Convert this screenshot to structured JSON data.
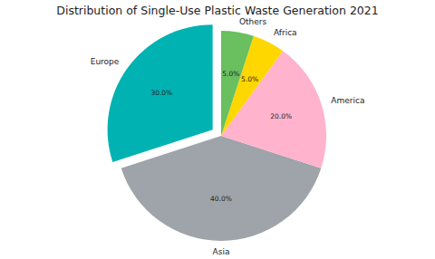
{
  "chart_data": {
    "type": "pie",
    "title": "Distribution of Single-Use Plastic Waste Generation 2021",
    "categories": [
      "Europe",
      "Asia",
      "America",
      "Africa",
      "Others"
    ],
    "values": [
      30,
      40,
      20,
      5,
      5
    ],
    "value_labels": [
      "30.0%",
      "40.0%",
      "20.0%",
      "5.0%",
      "5.0%"
    ],
    "colors": [
      "#00b2b2",
      "#9ea4a9",
      "#ffb3cc",
      "#ffd700",
      "#6abf5f"
    ],
    "data_labels": true
  }
}
